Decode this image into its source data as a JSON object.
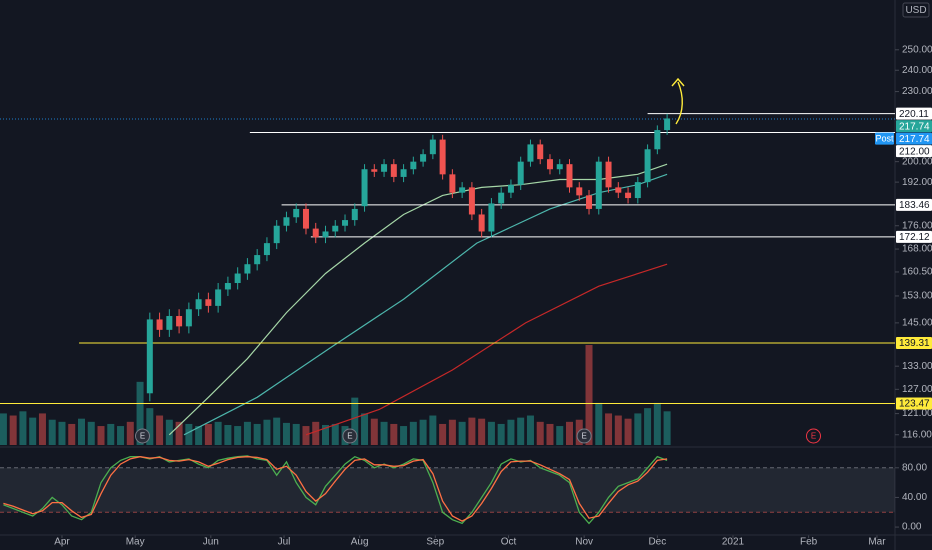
{
  "header": {
    "currency": "USD"
  },
  "chart_data": [
    {
      "type": "candlestick",
      "log_scale": true,
      "xlim": [
        -25.4,
        341.4
      ],
      "xticks": [
        {
          "value": 0,
          "label": "Apr"
        },
        {
          "value": 30,
          "label": "May"
        },
        {
          "value": 61,
          "label": "Jun"
        },
        {
          "value": 91,
          "label": "Jul"
        },
        {
          "value": 122,
          "label": "Aug"
        },
        {
          "value": 153,
          "label": "Sep"
        },
        {
          "value": 183,
          "label": "Oct"
        },
        {
          "value": 214,
          "label": "Nov"
        },
        {
          "value": 244,
          "label": "Dec"
        },
        {
          "value": 275,
          "label": "2021"
        },
        {
          "value": 306,
          "label": "Feb"
        },
        {
          "value": 334,
          "label": "Mar"
        }
      ],
      "ylim": [
        113.2,
        276.1
      ],
      "yticks": [
        {
          "value": 250,
          "label": "250.00"
        },
        {
          "value": 240,
          "label": "240.00"
        },
        {
          "value": 230,
          "label": "230.00"
        },
        {
          "value": 200,
          "label": "200.00"
        },
        {
          "value": 192,
          "label": "192.00"
        },
        {
          "value": 176,
          "label": "176.00"
        },
        {
          "value": 168,
          "label": "168.00"
        },
        {
          "value": 160.5,
          "label": "160.50"
        },
        {
          "value": 153,
          "label": "153.00"
        },
        {
          "value": 145,
          "label": "145.00"
        },
        {
          "value": 133,
          "label": "133.00"
        },
        {
          "value": 127,
          "label": "127.00"
        },
        {
          "value": 121,
          "label": "121.00"
        },
        {
          "value": 116,
          "label": "116.00"
        }
      ],
      "up_color": "#26a69a",
      "down_color": "#ef5350",
      "candles": {
        "x": [
          36,
          40,
          44,
          48,
          52,
          56,
          60,
          64,
          68,
          72,
          76,
          80,
          84,
          88,
          92,
          96,
          100,
          104,
          108,
          112,
          116,
          120,
          124,
          128,
          132,
          136,
          140,
          144,
          148,
          152,
          156,
          160,
          164,
          168,
          172,
          176,
          180,
          184,
          188,
          192,
          196,
          200,
          204,
          208,
          212,
          216,
          220,
          224,
          228,
          232,
          236,
          240,
          244,
          248
        ],
        "open": [
          126,
          146,
          143,
          147,
          144,
          149,
          152,
          150,
          155,
          157,
          160,
          163,
          166,
          170,
          176,
          179,
          182,
          175,
          172,
          174,
          176,
          178,
          183,
          197,
          196,
          199,
          194,
          197,
          200,
          203,
          209,
          195,
          188,
          190,
          180,
          174,
          184,
          188,
          191,
          200,
          207,
          201,
          197,
          199,
          190,
          187,
          182,
          200,
          190,
          188,
          186,
          192,
          205,
          213
        ],
        "high": [
          148,
          148,
          149,
          149,
          151,
          154,
          154,
          157,
          159,
          162,
          165,
          168,
          172,
          178,
          181,
          184,
          184,
          177,
          176,
          178,
          180,
          184,
          199,
          199,
          201,
          201,
          199,
          202,
          205,
          211,
          211,
          197,
          192,
          192,
          182,
          186,
          190,
          193,
          202,
          209,
          209,
          203,
          201,
          201,
          192,
          189,
          202,
          202,
          192,
          190,
          194,
          207,
          215,
          220
        ],
        "low": [
          124,
          141,
          141,
          142,
          142,
          147,
          148,
          148,
          153,
          155,
          158,
          161,
          164,
          168,
          174,
          177,
          173,
          170,
          170,
          172,
          174,
          176,
          181,
          194,
          194,
          192,
          192,
          195,
          198,
          201,
          193,
          186,
          186,
          178,
          172,
          172,
          182,
          186,
          189,
          198,
          199,
          195,
          195,
          188,
          185,
          180,
          180,
          188,
          186,
          184,
          184,
          190,
          203,
          211
        ],
        "close": [
          146,
          143,
          147,
          144,
          149,
          152,
          150,
          155,
          157,
          160,
          163,
          166,
          170,
          176,
          179,
          182,
          175,
          172,
          174,
          176,
          178,
          182,
          197,
          196,
          199,
          194,
          197,
          200,
          203,
          209,
          195,
          188,
          190,
          180,
          174,
          184,
          188,
          191,
          200,
          207,
          201,
          197,
          199,
          190,
          187,
          182,
          200,
          190,
          188,
          186,
          192,
          205,
          213,
          218
        ]
      },
      "volume": {
        "x": [
          -24,
          -20,
          -16,
          -12,
          -8,
          -4,
          0,
          4,
          8,
          12,
          16,
          20,
          24,
          28,
          32,
          36,
          40,
          44,
          48,
          52,
          56,
          60,
          64,
          68,
          72,
          76,
          80,
          84,
          88,
          92,
          96,
          100,
          104,
          108,
          112,
          116,
          120,
          124,
          128,
          132,
          136,
          140,
          144,
          148,
          152,
          156,
          160,
          164,
          168,
          172,
          176,
          180,
          184,
          188,
          192,
          196,
          200,
          204,
          208,
          212,
          216,
          220,
          224,
          228,
          232,
          236,
          240,
          244,
          248
        ],
        "values": [
          30,
          28,
          32,
          26,
          30,
          24,
          22,
          20,
          25,
          22,
          18,
          20,
          18,
          22,
          60,
          35,
          28,
          24,
          22,
          20,
          18,
          20,
          22,
          19,
          18,
          22,
          20,
          24,
          26,
          21,
          20,
          18,
          22,
          19,
          20,
          18,
          45,
          30,
          25,
          22,
          20,
          18,
          22,
          24,
          28,
          20,
          24,
          22,
          26,
          25,
          22,
          20,
          24,
          26,
          28,
          22,
          20,
          18,
          22,
          24,
          95,
          40,
          30,
          28,
          25,
          30,
          35,
          40,
          32
        ]
      },
      "moving_averages": [
        {
          "color": "#a5d6a7",
          "x": [
            44,
            60,
            76,
            92,
            108,
            124,
            140,
            156,
            172,
            188,
            204,
            220,
            236,
            248
          ],
          "values": [
            116,
            125,
            135,
            148,
            160,
            170,
            180,
            187,
            190,
            191,
            193,
            193,
            195,
            199
          ]
        },
        {
          "color": "#4db6ac",
          "x": [
            50,
            80,
            110,
            140,
            170,
            200,
            220,
            236,
            248
          ],
          "values": [
            116,
            125,
            138,
            152,
            170,
            182,
            188,
            191,
            195
          ]
        },
        {
          "color": "#c62828",
          "x": [
            100,
            130,
            160,
            190,
            220,
            248
          ],
          "values": [
            116,
            122,
            132,
            145,
            156,
            163
          ]
        }
      ],
      "levels": [
        {
          "value": 220.11,
          "color": "#ffffff",
          "from": 240
        },
        {
          "value": 212,
          "label": "212.00",
          "color": "#ffffff",
          "from": 77
        },
        {
          "value": 183.46,
          "color": "#ffffff",
          "from": 90
        },
        {
          "value": 172.12,
          "color": "#ffffff",
          "from": 102
        },
        {
          "value": 139.31,
          "color": "#ffeb3b",
          "from": 7
        },
        {
          "value": 123.47,
          "color": "#ffeb3b",
          "from": -25.4
        }
      ],
      "last_price": {
        "value": 217.74,
        "color": "#26a69a"
      },
      "post_price": {
        "tag": "Post",
        "value": 217.74,
        "color": "#2196f3"
      },
      "earnings": {
        "x": [
          33,
          118,
          214,
          308
        ],
        "labels": [
          "E",
          "E",
          "E",
          "E"
        ]
      }
    },
    {
      "type": "stochastic",
      "ylim": [
        -8,
        104
      ],
      "yticks": [
        {
          "value": 80,
          "label": "80.00"
        },
        {
          "value": 40,
          "label": "40.00"
        },
        {
          "value": 0,
          "label": "0.00"
        }
      ],
      "band": [
        20,
        80
      ],
      "x": [
        -24,
        -20,
        -16,
        -12,
        -8,
        -4,
        0,
        4,
        8,
        12,
        16,
        20,
        24,
        28,
        32,
        36,
        40,
        44,
        48,
        52,
        56,
        60,
        64,
        68,
        72,
        76,
        80,
        84,
        88,
        92,
        96,
        100,
        104,
        108,
        112,
        116,
        120,
        124,
        128,
        132,
        136,
        140,
        144,
        148,
        152,
        156,
        160,
        164,
        168,
        172,
        176,
        180,
        184,
        188,
        192,
        196,
        200,
        204,
        208,
        212,
        216,
        220,
        224,
        228,
        232,
        236,
        240,
        244,
        248
      ],
      "series": [
        {
          "color": "#4caf50",
          "values": [
            30,
            25,
            20,
            15,
            25,
            40,
            30,
            15,
            10,
            20,
            60,
            80,
            90,
            95,
            95,
            92,
            95,
            88,
            90,
            92,
            85,
            80,
            90,
            93,
            95,
            96,
            92,
            90,
            70,
            88,
            60,
            40,
            30,
            55,
            70,
            85,
            95,
            90,
            80,
            85,
            80,
            85,
            92,
            90,
            60,
            20,
            10,
            5,
            20,
            40,
            60,
            85,
            92,
            88,
            90,
            80,
            75,
            70,
            60,
            20,
            5,
            20,
            40,
            55,
            60,
            65,
            80,
            95,
            90
          ]
        },
        {
          "color": "#ff7043",
          "values": [
            32,
            28,
            23,
            18,
            22,
            33,
            33,
            22,
            13,
            17,
            45,
            70,
            85,
            92,
            95,
            93,
            94,
            90,
            89,
            91,
            88,
            82,
            86,
            91,
            94,
            95,
            94,
            91,
            78,
            82,
            70,
            48,
            35,
            45,
            62,
            78,
            90,
            92,
            84,
            84,
            82,
            83,
            89,
            91,
            72,
            35,
            15,
            8,
            15,
            32,
            52,
            75,
            88,
            89,
            89,
            84,
            78,
            72,
            64,
            32,
            12,
            15,
            32,
            48,
            57,
            62,
            74,
            90,
            92
          ]
        }
      ]
    }
  ]
}
